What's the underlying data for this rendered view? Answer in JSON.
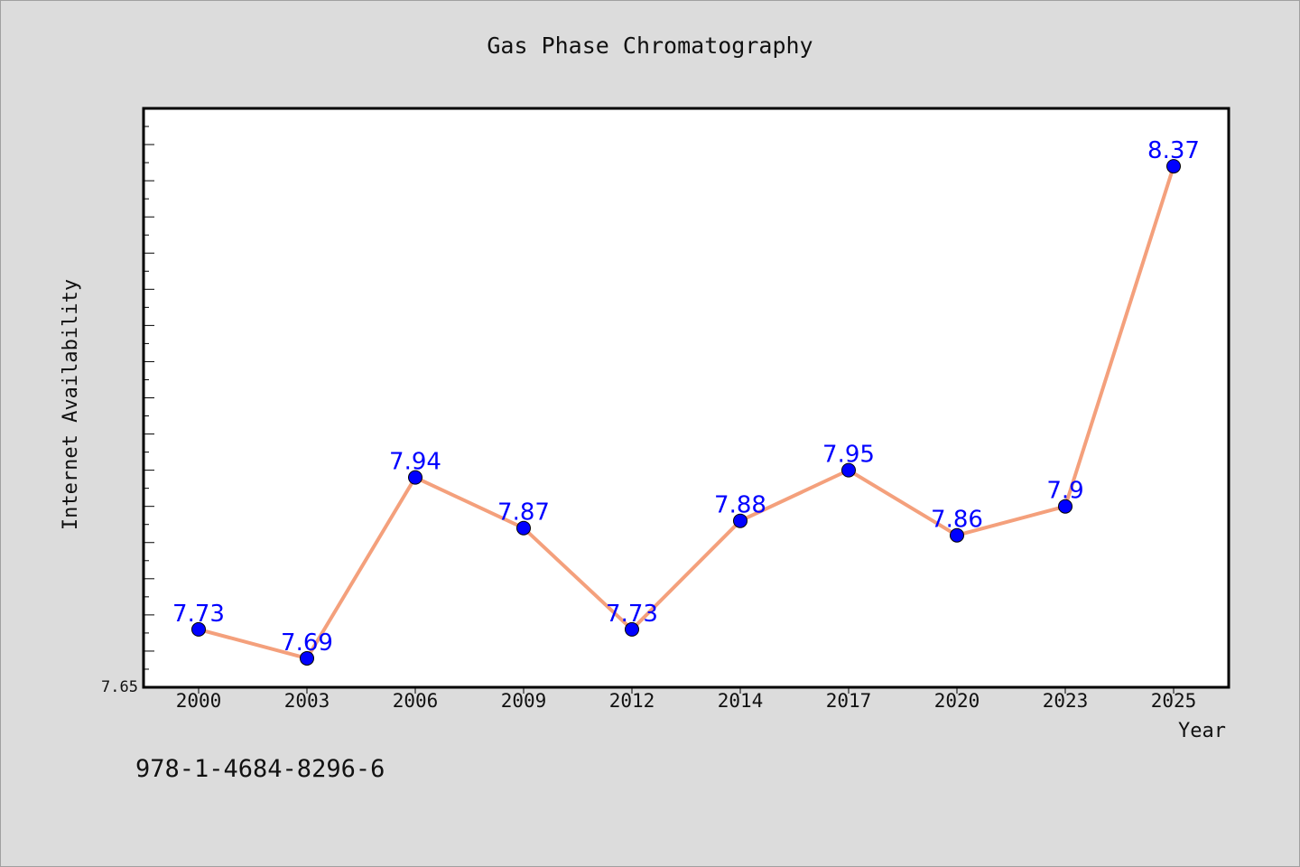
{
  "chart_data": {
    "type": "line",
    "title": "Gas Phase Chromatography",
    "xlabel": "Year",
    "ylabel": "Internet Availability",
    "categories": [
      "2000",
      "2003",
      "2006",
      "2009",
      "2012",
      "2014",
      "2017",
      "2020",
      "2023",
      "2025"
    ],
    "series": [
      {
        "values": [
          7.73,
          7.69,
          7.94,
          7.87,
          7.73,
          7.88,
          7.95,
          7.86,
          7.9,
          8.37
        ],
        "data_labels": [
          "7.73",
          "7.69",
          "7.94",
          "7.87",
          "7.73",
          "7.88",
          "7.95",
          "7.86",
          "7.9",
          "8.37"
        ],
        "line_color": "#f4a07c",
        "marker_color": "#0000ff"
      }
    ],
    "ylim": [
      7.65,
      8.45
    ],
    "ytick_labels": [
      "7.65"
    ],
    "grid": false,
    "legend": "none"
  },
  "footer_text": "978-1-4684-8296-6",
  "colors": {
    "background": "#dcdcdc",
    "plot_background": "#ffffff",
    "line": "#f4a07c",
    "marker": "#0000ff",
    "data_label": "#0000ff"
  }
}
